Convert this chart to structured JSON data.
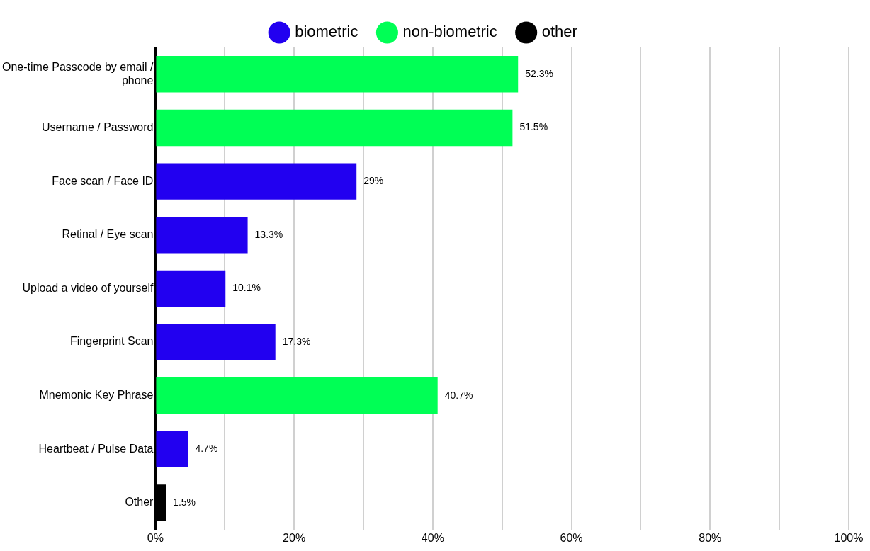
{
  "chart_data": {
    "type": "bar",
    "orientation": "horizontal",
    "categories": [
      "One-time Passcode by email / phone",
      "Username / Password",
      "Face scan / Face ID",
      "Retinal / Eye scan",
      "Upload a video of yourself",
      "Fingerprint Scan",
      "Mnemonic Key Phrase",
      "Heartbeat / Pulse Data",
      "Other"
    ],
    "series": [
      {
        "name": "biometric",
        "color": "#2200f0",
        "values": [
          null,
          null,
          29,
          13.3,
          10.1,
          17.3,
          null,
          4.7,
          null
        ],
        "value_labels": [
          null,
          null,
          "29%",
          "13.3%",
          "10.1%",
          "17.3%",
          null,
          "4.7%",
          null
        ]
      },
      {
        "name": "non-biometric",
        "color": "#00ff55",
        "values": [
          52.3,
          51.5,
          null,
          null,
          null,
          null,
          40.7,
          null,
          null
        ],
        "value_labels": [
          "52.3%",
          "51.5%",
          null,
          null,
          null,
          null,
          "40.7%",
          null,
          null
        ]
      },
      {
        "name": "other",
        "color": "#000000",
        "values": [
          null,
          null,
          null,
          null,
          null,
          null,
          null,
          null,
          1.5
        ],
        "value_labels": [
          null,
          null,
          null,
          null,
          null,
          null,
          null,
          null,
          "1.5%"
        ]
      }
    ],
    "xlim": [
      0,
      100
    ],
    "xticks": [
      {
        "value": 0,
        "label": "0%"
      },
      {
        "value": 10,
        "label": null
      },
      {
        "value": 20,
        "label": "20%"
      },
      {
        "value": 30,
        "label": null
      },
      {
        "value": 40,
        "label": "40%"
      },
      {
        "value": 50,
        "label": null
      },
      {
        "value": 60,
        "label": "60%"
      },
      {
        "value": 70,
        "label": null
      },
      {
        "value": 80,
        "label": "80%"
      },
      {
        "value": 90,
        "label": null
      },
      {
        "value": 100,
        "label": "100%"
      }
    ],
    "grid": "x",
    "legend": "top"
  }
}
